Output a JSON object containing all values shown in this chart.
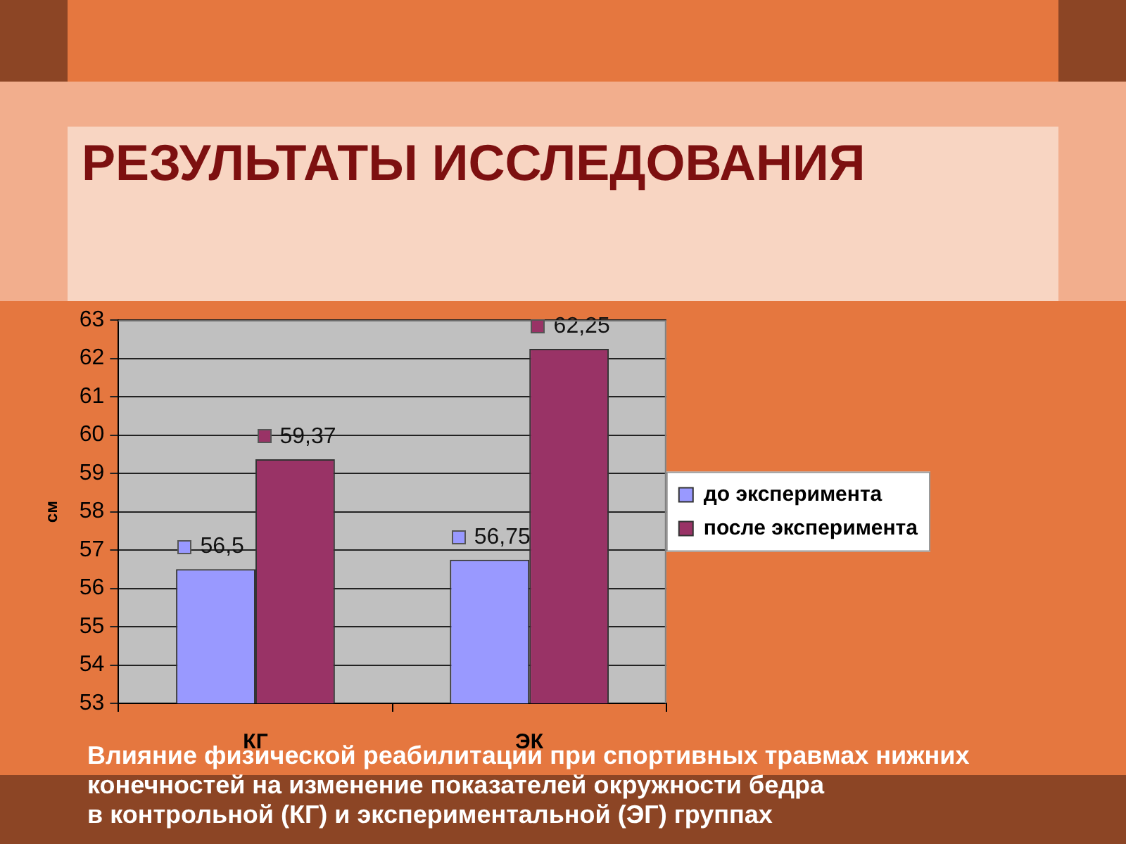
{
  "chart_data": {
    "type": "bar",
    "title": "РЕЗУЛЬТАТЫ ИССЛЕДОВАНИЯ",
    "ylabel": "см",
    "categories": [
      "КГ",
      "ЭК"
    ],
    "series": [
      {
        "name": "до эксперимента",
        "color": "#9999ff",
        "values": [
          56.5,
          56.75
        ],
        "value_labels": [
          "56,5",
          "56,75"
        ]
      },
      {
        "name": "после эксперимента",
        "color": "#993366",
        "values": [
          59.37,
          62.25
        ],
        "value_labels": [
          "59,37",
          "62,25"
        ]
      }
    ],
    "ylim": [
      53,
      63
    ],
    "yticks": [
      53,
      54,
      55,
      56,
      57,
      58,
      59,
      60,
      61,
      62,
      63
    ],
    "grid": "y",
    "legend": "right",
    "annotations": [
      "Влияние физической реабилитации при спортивных травмах нижних конечностей на изменение показателей окружности бедра\nв контрольной (КГ) и экспериментальной (ЭГ) группах"
    ]
  }
}
